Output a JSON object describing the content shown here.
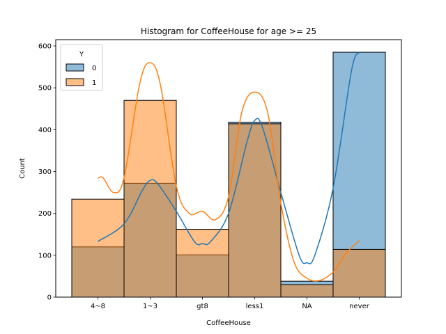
{
  "chart_data": {
    "type": "bar",
    "title": "Histogram for CoffeeHouse for age >= 25",
    "xlabel": "CoffeeHouse",
    "ylabel": "Count",
    "ylim": [
      0,
      615
    ],
    "yticks": [
      0,
      100,
      200,
      300,
      400,
      500,
      600
    ],
    "categories": [
      "4~8",
      "1~3",
      "gt8",
      "less1",
      "NA",
      "never"
    ],
    "legend": {
      "title": "Y",
      "position": "top-left"
    },
    "grid": false,
    "series": [
      {
        "name": "0",
        "color": "#1f77b4",
        "values": [
          120,
          272,
          101,
          418,
          38,
          585
        ],
        "kde": [
          [
            0,
            133
          ],
          [
            0.5,
            175
          ],
          [
            0.85,
            255
          ],
          [
            1.0,
            279
          ],
          [
            1.15,
            270
          ],
          [
            1.5,
            205
          ],
          [
            1.85,
            132
          ],
          [
            2.0,
            128
          ],
          [
            2.15,
            132
          ],
          [
            2.5,
            200
          ],
          [
            2.85,
            370
          ],
          [
            3.0,
            422
          ],
          [
            3.15,
            405
          ],
          [
            3.5,
            250
          ],
          [
            3.85,
            100
          ],
          [
            4.0,
            82
          ],
          [
            4.15,
            100
          ],
          [
            4.5,
            260
          ],
          [
            4.85,
            540
          ],
          [
            5.0,
            585
          ]
        ]
      },
      {
        "name": "1",
        "color": "#ff7f0e",
        "values": [
          234,
          470,
          162,
          414,
          30,
          114
        ],
        "kde": [
          [
            0,
            284
          ],
          [
            0.1,
            285
          ],
          [
            0.3,
            250
          ],
          [
            0.5,
            285
          ],
          [
            0.8,
            510
          ],
          [
            1.0,
            560
          ],
          [
            1.2,
            505
          ],
          [
            1.5,
            265
          ],
          [
            1.75,
            200
          ],
          [
            2.0,
            205
          ],
          [
            2.25,
            185
          ],
          [
            2.5,
            240
          ],
          [
            2.75,
            440
          ],
          [
            3.0,
            490
          ],
          [
            3.25,
            440
          ],
          [
            3.5,
            225
          ],
          [
            3.75,
            85
          ],
          [
            4.0,
            45
          ],
          [
            4.25,
            40
          ],
          [
            4.5,
            60
          ],
          [
            4.75,
            105
          ],
          [
            5.0,
            135
          ]
        ]
      }
    ]
  }
}
